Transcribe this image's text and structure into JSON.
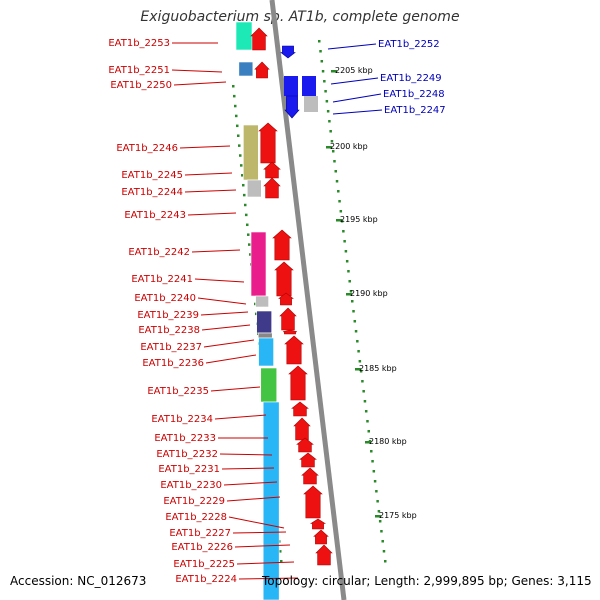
{
  "title": "Exiguobacterium sp. AT1b, complete genome",
  "accession_text": "Accession: NC_012673",
  "topology_text": "Topology: circular; Length: 2,999,895 bp; Genes: 3,115",
  "colors": {
    "forward_label": "#cc0000",
    "reverse_label": "#0000bb",
    "backbone": "#888888",
    "tick": "#2a8a2a"
  },
  "kbp_ticks": [
    "2205 kbp",
    "2200 kbp",
    "2195 kbp",
    "2190 kbp",
    "2185 kbp",
    "2180 kbp",
    "2175 kbp"
  ],
  "forward_genes": [
    "EAT1b_2253",
    "EAT1b_2251",
    "EAT1b_2250",
    "EAT1b_2246",
    "EAT1b_2245",
    "EAT1b_2244",
    "EAT1b_2243",
    "EAT1b_2242",
    "EAT1b_2241",
    "EAT1b_2240",
    "EAT1b_2239",
    "EAT1b_2238",
    "EAT1b_2237",
    "EAT1b_2236",
    "EAT1b_2235",
    "EAT1b_2234",
    "EAT1b_2233",
    "EAT1b_2232",
    "EAT1b_2231",
    "EAT1b_2230",
    "EAT1b_2229",
    "EAT1b_2228",
    "EAT1b_2227",
    "EAT1b_2226",
    "EAT1b_2225",
    "EAT1b_2224"
  ],
  "reverse_genes": [
    "EAT1b_2252",
    "EAT1b_2249",
    "EAT1b_2248",
    "EAT1b_2247"
  ]
}
